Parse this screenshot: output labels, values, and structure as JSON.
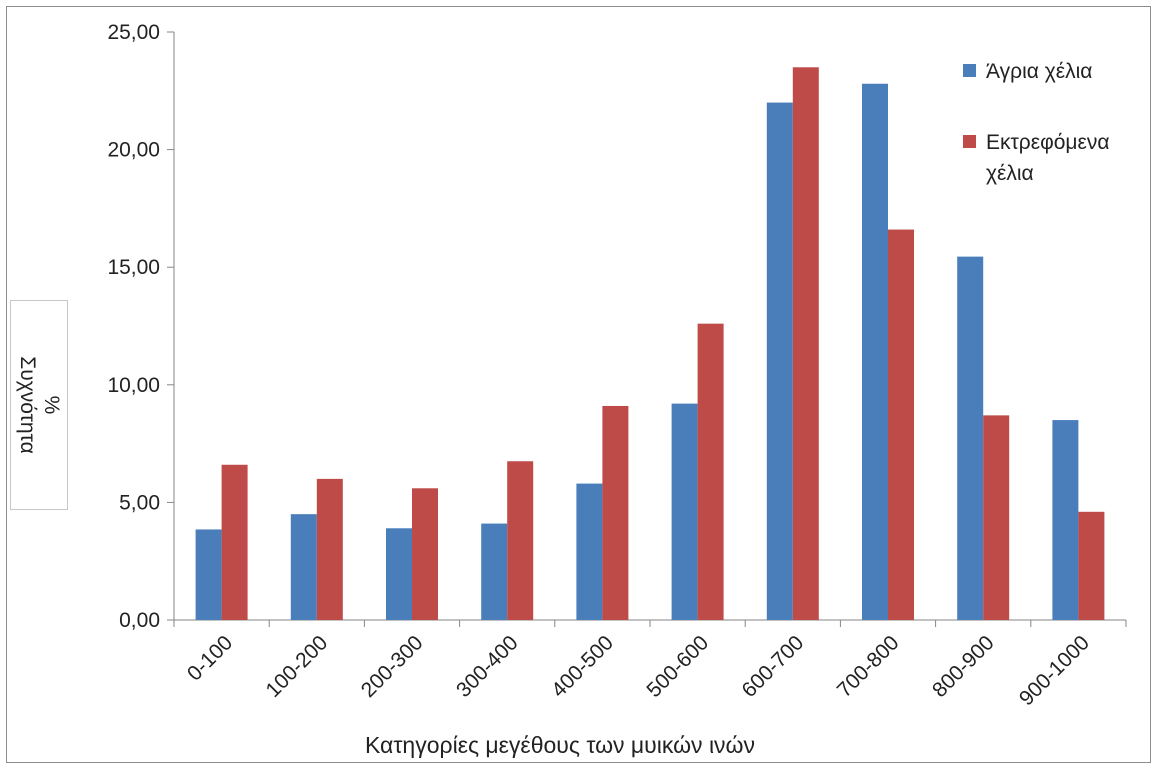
{
  "chart_data": {
    "type": "bar",
    "categories": [
      "0-100",
      "100-200",
      "200-300",
      "300-400",
      "400-500",
      "500-600",
      "600-700",
      "700-800",
      "800-900",
      "900-1000"
    ],
    "series": [
      {
        "name": "Άγρια χέλια",
        "color": "#4a7ebb",
        "values": [
          3.85,
          4.5,
          3.9,
          4.1,
          5.8,
          9.2,
          22.0,
          22.8,
          15.45,
          8.5
        ]
      },
      {
        "name": "Εκτρεφόμενα χέλια",
        "color": "#be4b48",
        "values": [
          6.6,
          6.0,
          5.6,
          6.75,
          9.1,
          12.6,
          23.5,
          16.6,
          8.7,
          4.6
        ]
      }
    ],
    "xlabel": "Κατηγορίες μεγέθους των μυικών ινών",
    "ylabel": "%\nΣυχνότητα",
    "ylim": [
      0,
      25
    ],
    "yticks": [
      "0,00",
      "5,00",
      "10,00",
      "15,00",
      "20,00",
      "25,00"
    ],
    "grid": false,
    "legend_position": "top-right",
    "legend_labels": [
      "Άγρια χέλια",
      "Εκτρεφόμενα\nχέλια"
    ]
  }
}
